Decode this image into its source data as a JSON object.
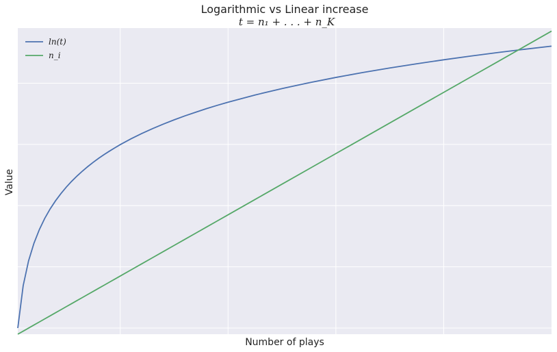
{
  "chart_data": {
    "type": "line",
    "title": "Logarithmic vs Linear increase",
    "subtitle": "t = n₁ + . . . + n_K",
    "xlabel": "Number of plays",
    "ylabel": "Value",
    "x_tick_labels": [],
    "y_tick_labels": [],
    "grid": true,
    "legend_position": "top-left",
    "x": [
      1,
      2,
      3,
      4,
      5,
      6,
      7,
      8,
      9,
      10,
      11,
      12,
      13,
      14,
      15,
      16,
      17,
      18,
      19,
      20,
      22,
      24,
      26,
      28,
      30,
      32,
      34,
      36,
      38,
      40,
      45,
      50,
      55,
      60,
      65,
      70,
      75,
      80,
      85,
      90,
      95,
      100
    ],
    "xlim": [
      1,
      100
    ],
    "ylim": [
      -0.1,
      4.9
    ],
    "series": [
      {
        "name": "ln(t)",
        "color": "#4c72b0",
        "values": [
          0.0,
          0.693,
          1.099,
          1.386,
          1.609,
          1.792,
          1.946,
          2.079,
          2.197,
          2.303,
          2.398,
          2.485,
          2.565,
          2.639,
          2.708,
          2.773,
          2.833,
          2.89,
          2.944,
          2.996,
          3.091,
          3.178,
          3.258,
          3.332,
          3.401,
          3.466,
          3.526,
          3.584,
          3.638,
          3.689,
          3.807,
          3.912,
          4.007,
          4.094,
          4.174,
          4.248,
          4.317,
          4.382,
          4.443,
          4.5,
          4.554,
          4.605
        ]
      },
      {
        "name": "n_i",
        "color": "#55a868",
        "values": [
          -0.1,
          -0.05,
          0.0,
          0.05,
          0.1,
          0.15,
          0.2,
          0.25,
          0.3,
          0.35,
          0.4,
          0.45,
          0.5,
          0.55,
          0.6,
          0.65,
          0.7,
          0.75,
          0.8,
          0.85,
          0.95,
          1.05,
          1.15,
          1.25,
          1.35,
          1.45,
          1.55,
          1.65,
          1.75,
          1.85,
          2.1,
          2.35,
          2.6,
          2.85,
          3.1,
          3.35,
          3.6,
          3.85,
          4.1,
          4.35,
          4.6,
          4.85
        ]
      }
    ],
    "colors": {
      "plot_background": "#eaeaf2",
      "grid": "#ffffff"
    }
  }
}
